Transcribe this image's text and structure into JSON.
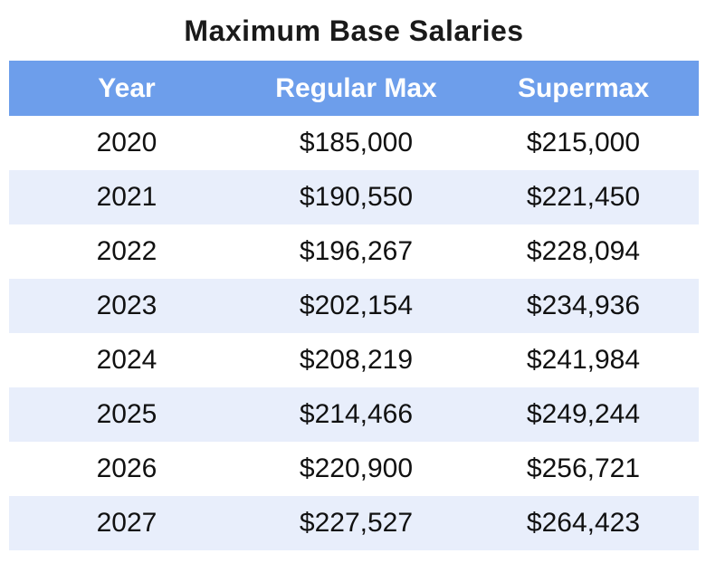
{
  "title": "Maximum Base Salaries",
  "columns": [
    "Year",
    "Regular Max",
    "Supermax"
  ],
  "rows": [
    [
      "2020",
      "$185,000",
      "$215,000"
    ],
    [
      "2021",
      "$190,550",
      "$221,450"
    ],
    [
      "2022",
      "$196,267",
      "$228,094"
    ],
    [
      "2023",
      "$202,154",
      "$234,936"
    ],
    [
      "2024",
      "$208,219",
      "$241,984"
    ],
    [
      "2025",
      "$214,466",
      "$249,244"
    ],
    [
      "2026",
      "$220,900",
      "$256,721"
    ],
    [
      "2027",
      "$227,527",
      "$264,423"
    ]
  ],
  "colors": {
    "header_background": "#6d9eeb",
    "header_text": "#ffffff",
    "stripe_background": "#e8eefb",
    "body_text": "#111111",
    "title_text": "#1a1a1a"
  },
  "chart_data": {
    "type": "table",
    "title": "Maximum Base Salaries",
    "columns": [
      "Year",
      "Regular Max",
      "Supermax"
    ],
    "categories": [
      2020,
      2021,
      2022,
      2023,
      2024,
      2025,
      2026,
      2027
    ],
    "series": [
      {
        "name": "Regular Max",
        "values": [
          185000,
          190550,
          196267,
          202154,
          208219,
          214466,
          220900,
          227527
        ]
      },
      {
        "name": "Supermax",
        "values": [
          215000,
          221450,
          228094,
          234936,
          241984,
          249244,
          256721,
          264423
        ]
      }
    ],
    "layout_hints": {
      "header_fill": "#6d9eeb",
      "alternating_row_fill": "#e8eefb",
      "alignment": "center",
      "grid": "none"
    }
  }
}
